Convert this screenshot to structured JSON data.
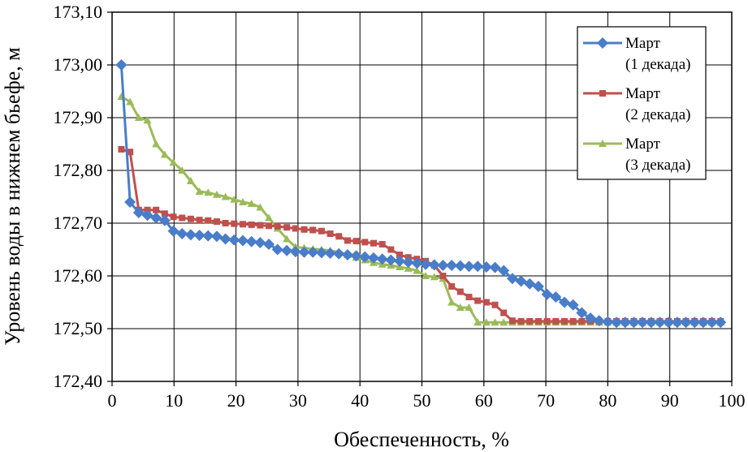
{
  "chart_data": {
    "type": "line",
    "xlabel": "Обеспеченность, %",
    "ylabel": "Уровень воды в нижнем бьефе, м",
    "xlim": [
      0,
      100
    ],
    "ylim": [
      172.4,
      173.1
    ],
    "x_ticks": [
      "0",
      "10",
      "20",
      "30",
      "40",
      "50",
      "60",
      "70",
      "80",
      "90",
      "100"
    ],
    "y_ticks": [
      "172,40",
      "172,50",
      "172,60",
      "172,70",
      "172,80",
      "172,90",
      "173,00",
      "173,10"
    ],
    "legend_position": "top-right",
    "series": [
      {
        "name_line1": "Март",
        "name_line2": "(1 декада)",
        "color": "#4a7dc8",
        "marker": "diamond",
        "points": [
          [
            1.5,
            173.0
          ],
          [
            2.9,
            172.74
          ],
          [
            4.3,
            172.72
          ],
          [
            5.7,
            172.715
          ],
          [
            7.1,
            172.71
          ],
          [
            8.5,
            172.705
          ],
          [
            9.9,
            172.685
          ],
          [
            11.3,
            172.68
          ],
          [
            12.7,
            172.678
          ],
          [
            14.1,
            172.677
          ],
          [
            15.5,
            172.676
          ],
          [
            16.9,
            172.675
          ],
          [
            18.3,
            172.67
          ],
          [
            19.7,
            172.668
          ],
          [
            21.1,
            172.667
          ],
          [
            22.5,
            172.665
          ],
          [
            23.9,
            172.663
          ],
          [
            25.3,
            172.66
          ],
          [
            26.7,
            172.65
          ],
          [
            28.2,
            172.648
          ],
          [
            29.6,
            172.646
          ],
          [
            31.0,
            172.645
          ],
          [
            32.4,
            172.645
          ],
          [
            33.8,
            172.644
          ],
          [
            35.2,
            172.643
          ],
          [
            36.6,
            172.642
          ],
          [
            38.0,
            172.64
          ],
          [
            39.4,
            172.638
          ],
          [
            40.8,
            172.636
          ],
          [
            42.2,
            172.634
          ],
          [
            43.6,
            172.632
          ],
          [
            45.0,
            172.63
          ],
          [
            46.4,
            172.628
          ],
          [
            47.8,
            172.626
          ],
          [
            49.2,
            172.624
          ],
          [
            50.6,
            172.622
          ],
          [
            52.0,
            172.621
          ],
          [
            53.4,
            172.62
          ],
          [
            54.8,
            172.62
          ],
          [
            56.2,
            172.619
          ],
          [
            57.6,
            172.618
          ],
          [
            59.0,
            172.618
          ],
          [
            60.4,
            172.617
          ],
          [
            61.8,
            172.616
          ],
          [
            63.2,
            172.61
          ],
          [
            64.6,
            172.595
          ],
          [
            66.0,
            172.59
          ],
          [
            67.4,
            172.585
          ],
          [
            68.8,
            172.58
          ],
          [
            70.2,
            172.565
          ],
          [
            71.6,
            172.56
          ],
          [
            73.0,
            172.55
          ],
          [
            74.4,
            172.545
          ],
          [
            75.8,
            172.53
          ],
          [
            77.2,
            172.52
          ],
          [
            78.6,
            172.515
          ],
          [
            80.0,
            172.513
          ],
          [
            81.4,
            172.512
          ],
          [
            82.8,
            172.512
          ],
          [
            84.2,
            172.512
          ],
          [
            85.6,
            172.512
          ],
          [
            87.0,
            172.512
          ],
          [
            88.4,
            172.512
          ],
          [
            89.8,
            172.512
          ],
          [
            91.2,
            172.512
          ],
          [
            92.6,
            172.512
          ],
          [
            94.0,
            172.512
          ],
          [
            95.4,
            172.512
          ],
          [
            96.8,
            172.512
          ],
          [
            98.2,
            172.512
          ]
        ]
      },
      {
        "name_line1": "Март",
        "name_line2": "(2 декада)",
        "color": "#c0504d",
        "marker": "square",
        "points": [
          [
            1.5,
            172.84
          ],
          [
            2.9,
            172.835
          ],
          [
            4.3,
            172.725
          ],
          [
            5.7,
            172.725
          ],
          [
            7.1,
            172.725
          ],
          [
            8.5,
            172.718
          ],
          [
            9.9,
            172.712
          ],
          [
            11.3,
            172.71
          ],
          [
            12.7,
            172.708
          ],
          [
            14.1,
            172.706
          ],
          [
            15.5,
            172.705
          ],
          [
            16.9,
            172.703
          ],
          [
            18.3,
            172.7
          ],
          [
            19.7,
            172.699
          ],
          [
            21.1,
            172.698
          ],
          [
            22.5,
            172.697
          ],
          [
            23.9,
            172.696
          ],
          [
            25.3,
            172.695
          ],
          [
            26.7,
            172.694
          ],
          [
            28.2,
            172.692
          ],
          [
            29.6,
            172.69
          ],
          [
            31.0,
            172.688
          ],
          [
            32.4,
            172.687
          ],
          [
            33.8,
            172.685
          ],
          [
            35.2,
            172.68
          ],
          [
            36.6,
            172.675
          ],
          [
            38.0,
            172.667
          ],
          [
            39.4,
            172.666
          ],
          [
            40.8,
            172.664
          ],
          [
            42.2,
            172.662
          ],
          [
            43.6,
            172.66
          ],
          [
            45.0,
            172.65
          ],
          [
            46.4,
            172.64
          ],
          [
            47.8,
            172.635
          ],
          [
            49.2,
            172.632
          ],
          [
            50.6,
            172.628
          ],
          [
            52.0,
            172.62
          ],
          [
            53.4,
            172.6
          ],
          [
            54.8,
            172.58
          ],
          [
            56.2,
            172.57
          ],
          [
            57.6,
            172.56
          ],
          [
            59.0,
            172.553
          ],
          [
            60.4,
            172.55
          ],
          [
            61.8,
            172.545
          ],
          [
            63.2,
            172.53
          ],
          [
            64.6,
            172.515
          ],
          [
            66.0,
            172.514
          ],
          [
            67.4,
            172.514
          ],
          [
            68.8,
            172.514
          ],
          [
            70.2,
            172.514
          ],
          [
            71.6,
            172.514
          ],
          [
            73.0,
            172.514
          ],
          [
            74.4,
            172.514
          ],
          [
            75.8,
            172.514
          ],
          [
            77.2,
            172.514
          ],
          [
            78.6,
            172.514
          ],
          [
            80.0,
            172.514
          ],
          [
            81.4,
            172.514
          ],
          [
            82.8,
            172.514
          ],
          [
            84.2,
            172.514
          ],
          [
            85.6,
            172.514
          ],
          [
            87.0,
            172.514
          ],
          [
            88.4,
            172.514
          ],
          [
            89.8,
            172.514
          ],
          [
            91.2,
            172.514
          ],
          [
            92.6,
            172.514
          ],
          [
            94.0,
            172.514
          ],
          [
            95.4,
            172.514
          ],
          [
            96.8,
            172.514
          ],
          [
            98.2,
            172.514
          ]
        ]
      },
      {
        "name_line1": "Март",
        "name_line2": "(3 декада)",
        "color": "#9bbb59",
        "marker": "triangle",
        "points": [
          [
            1.5,
            172.94
          ],
          [
            2.9,
            172.93
          ],
          [
            4.3,
            172.9
          ],
          [
            5.7,
            172.895
          ],
          [
            7.1,
            172.85
          ],
          [
            8.5,
            172.83
          ],
          [
            9.9,
            172.815
          ],
          [
            11.3,
            172.8
          ],
          [
            12.7,
            172.78
          ],
          [
            14.1,
            172.76
          ],
          [
            15.5,
            172.758
          ],
          [
            16.9,
            172.754
          ],
          [
            18.3,
            172.75
          ],
          [
            19.7,
            172.745
          ],
          [
            21.1,
            172.74
          ],
          [
            22.5,
            172.737
          ],
          [
            23.9,
            172.73
          ],
          [
            25.3,
            172.71
          ],
          [
            26.7,
            172.69
          ],
          [
            28.2,
            172.67
          ],
          [
            29.6,
            172.655
          ],
          [
            31.0,
            172.653
          ],
          [
            32.4,
            172.651
          ],
          [
            33.8,
            172.65
          ],
          [
            35.2,
            172.648
          ],
          [
            36.6,
            172.645
          ],
          [
            38.0,
            172.64
          ],
          [
            39.4,
            172.635
          ],
          [
            40.8,
            172.63
          ],
          [
            42.2,
            172.625
          ],
          [
            43.6,
            172.622
          ],
          [
            45.0,
            172.62
          ],
          [
            46.4,
            172.617
          ],
          [
            47.8,
            172.614
          ],
          [
            49.2,
            172.61
          ],
          [
            50.6,
            172.6
          ],
          [
            52.0,
            172.598
          ],
          [
            53.4,
            172.595
          ],
          [
            54.8,
            172.55
          ],
          [
            56.2,
            172.54
          ],
          [
            57.6,
            172.54
          ],
          [
            59.0,
            172.512
          ],
          [
            60.4,
            172.512
          ],
          [
            61.8,
            172.512
          ],
          [
            63.2,
            172.512
          ],
          [
            64.6,
            172.512
          ],
          [
            66.0,
            172.512
          ],
          [
            67.4,
            172.512
          ],
          [
            68.8,
            172.512
          ],
          [
            70.2,
            172.512
          ],
          [
            71.6,
            172.512
          ],
          [
            73.0,
            172.512
          ],
          [
            74.4,
            172.512
          ],
          [
            75.8,
            172.512
          ],
          [
            77.2,
            172.512
          ],
          [
            78.6,
            172.512
          ],
          [
            80.0,
            172.512
          ],
          [
            81.4,
            172.512
          ],
          [
            82.8,
            172.512
          ],
          [
            84.2,
            172.512
          ],
          [
            85.6,
            172.512
          ],
          [
            87.0,
            172.512
          ],
          [
            88.4,
            172.512
          ],
          [
            89.8,
            172.512
          ],
          [
            91.2,
            172.512
          ],
          [
            92.6,
            172.512
          ],
          [
            94.0,
            172.512
          ],
          [
            95.4,
            172.512
          ],
          [
            96.8,
            172.512
          ],
          [
            98.2,
            172.512
          ]
        ]
      }
    ]
  }
}
